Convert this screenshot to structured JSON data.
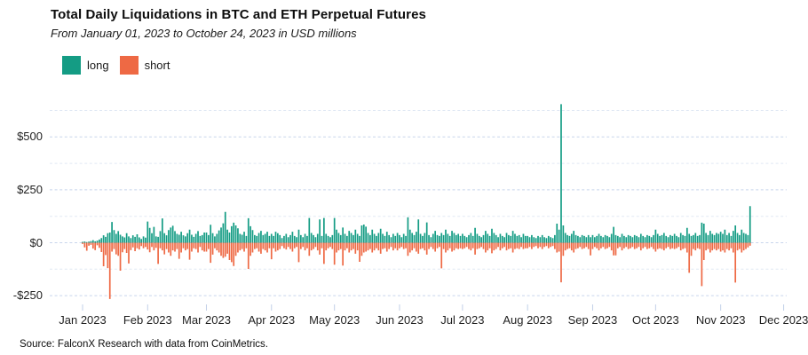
{
  "chart_data": {
    "type": "bar",
    "title": "Total Daily Liquidations in BTC and ETH Perpetual Futures",
    "subtitle": "From January 01, 2023 to October 24, 2023 in USD millions",
    "unit": "USD millions",
    "frequency": "daily",
    "start_date": "2023-01-01",
    "grid": "horizontal-dashed",
    "legend_position": "top-left",
    "y_ticks": [
      500,
      250,
      0,
      -250
    ],
    "y_tick_labels": [
      "$500",
      "$250",
      "$0",
      "-$250"
    ],
    "y_minor_ticks": [
      625,
      375,
      125,
      -125
    ],
    "ylim": [
      -290,
      680
    ],
    "x_tick_labels": [
      "Jan 2023",
      "Feb 2023",
      "Mar 2023",
      "Apr 2023",
      "May 2023",
      "Jun 2023",
      "Jul 2023",
      "Aug 2023",
      "Sep 2023",
      "Oct 2023",
      "Nov 2023",
      "Dec 2023"
    ],
    "series": [
      {
        "name": "long",
        "color": "#149C84",
        "values": [
          4,
          6,
          3,
          5,
          8,
          12,
          7,
          10,
          15,
          22,
          35,
          28,
          45,
          48,
          98,
          60,
          42,
          55,
          38,
          30,
          25,
          45,
          30,
          22,
          35,
          28,
          40,
          25,
          18,
          30,
          24,
          100,
          70,
          45,
          75,
          30,
          28,
          55,
          115,
          45,
          35,
          60,
          72,
          80,
          55,
          42,
          38,
          52,
          35,
          30,
          45,
          62,
          38,
          28,
          42,
          55,
          32,
          36,
          48,
          48,
          36,
          85,
          45,
          30,
          42,
          58,
          72,
          92,
          146,
          62,
          48,
          78,
          95,
          82,
          68,
          42,
          38,
          52,
          32,
          116,
          78,
          60,
          36,
          32,
          46,
          56,
          36,
          42,
          52,
          32,
          42,
          32,
          52,
          45,
          36,
          22,
          32,
          42,
          26,
          36,
          52,
          32,
          26,
          62,
          36,
          26,
          42,
          32,
          117,
          46,
          36,
          26,
          42,
          110,
          32,
          117,
          42,
          32,
          26,
          36,
          117,
          62,
          46,
          36,
          72,
          42,
          32,
          56,
          46,
          36,
          62,
          42,
          32,
          82,
          86,
          76,
          46,
          36,
          62,
          42,
          32,
          46,
          66,
          42,
          32,
          52,
          36,
          26,
          42,
          32,
          46,
          36,
          26,
          42,
          32,
          120,
          62,
          46,
          36,
          52,
          110,
          42,
          32,
          46,
          96,
          36,
          26,
          42,
          56,
          36,
          32,
          46,
          36,
          62,
          42,
          32,
          56,
          46,
          36,
          42,
          32,
          42,
          32,
          26,
          36,
          46,
          32,
          70,
          42,
          32,
          26,
          36,
          56,
          42,
          32,
          66,
          46,
          36,
          26,
          42,
          32,
          26,
          46,
          36,
          32,
          56,
          42,
          32,
          36,
          26,
          42,
          32,
          32,
          26,
          36,
          26,
          22,
          32,
          26,
          36,
          26,
          22,
          32,
          26,
          22,
          36,
          90,
          62,
          655,
          82,
          46,
          36,
          32,
          42,
          56,
          36,
          32,
          26,
          36,
          32,
          26,
          36,
          26,
          36,
          26,
          32,
          42,
          32,
          26,
          36,
          32,
          26,
          42,
          75,
          36,
          32,
          26,
          42,
          32,
          26,
          36,
          32,
          26,
          36,
          32,
          26,
          42,
          32,
          26,
          36,
          32,
          26,
          36,
          62,
          42,
          32,
          36,
          46,
          32,
          26,
          36,
          32,
          42,
          32,
          26,
          46,
          36,
          32,
          70,
          42,
          32,
          36,
          46,
          32,
          36,
          95,
          90,
          46,
          36,
          56,
          42,
          36,
          46,
          42,
          52,
          42,
          62,
          36,
          46,
          32,
          56,
          82,
          46,
          36,
          62,
          46,
          42,
          36,
          173
        ]
      },
      {
        "name": "short",
        "color": "#EE6944",
        "values": [
          -6,
          -22,
          -38,
          -14,
          -10,
          -28,
          -35,
          -12,
          -24,
          -44,
          -111,
          -58,
          -120,
          -266,
          -42,
          -30,
          -55,
          -62,
          -132,
          -45,
          -30,
          -48,
          -98,
          -35,
          -22,
          -40,
          -26,
          -32,
          -16,
          -26,
          -20,
          -32,
          -45,
          -20,
          -36,
          -24,
          -100,
          -26,
          -36,
          -55,
          -30,
          -46,
          -62,
          -36,
          -42,
          -30,
          -76,
          -46,
          -26,
          -36,
          -30,
          -80,
          -42,
          -26,
          -30,
          -46,
          -20,
          -36,
          -42,
          -42,
          -30,
          -95,
          -56,
          -26,
          -36,
          -46,
          -62,
          -72,
          -66,
          -52,
          -82,
          -92,
          -110,
          -62,
          -46,
          -36,
          -30,
          -42,
          -26,
          -124,
          -62,
          -46,
          -30,
          -26,
          -42,
          -52,
          -30,
          -36,
          -46,
          -26,
          -78,
          -26,
          -42,
          -36,
          -30,
          -16,
          -26,
          -32,
          -20,
          -30,
          -42,
          -26,
          -20,
          -92,
          -30,
          -20,
          -36,
          -26,
          -62,
          -36,
          -30,
          -20,
          -36,
          -56,
          -26,
          -100,
          -36,
          -26,
          -20,
          -30,
          -104,
          -46,
          -36,
          -30,
          -108,
          -36,
          -26,
          -46,
          -36,
          -30,
          -52,
          -36,
          -90,
          -62,
          -46,
          -42,
          -36,
          -30,
          -46,
          -36,
          -26,
          -36,
          -52,
          -30,
          -26,
          -42,
          -30,
          -20,
          -36,
          -26,
          -36,
          -26,
          -20,
          -30,
          -26,
          -62,
          -46,
          -36,
          -26,
          -42,
          -52,
          -30,
          -26,
          -36,
          -56,
          -30,
          -20,
          -30,
          -42,
          -26,
          -20,
          -121,
          -30,
          -46,
          -36,
          -26,
          -42,
          -36,
          -26,
          -30,
          -26,
          -30,
          -26,
          -20,
          -30,
          -36,
          -26,
          -56,
          -30,
          -26,
          -20,
          -30,
          -46,
          -36,
          -26,
          -50,
          -36,
          -30,
          -20,
          -36,
          -26,
          -20,
          -36,
          -30,
          -26,
          -46,
          -30,
          -26,
          -30,
          -20,
          -30,
          -26,
          -26,
          -20,
          -30,
          -20,
          -16,
          -26,
          -20,
          -30,
          -20,
          -16,
          -26,
          -20,
          -16,
          -30,
          -46,
          -42,
          -187,
          -62,
          -36,
          -30,
          -26,
          -36,
          -46,
          -30,
          -26,
          -20,
          -30,
          -26,
          -20,
          -30,
          -60,
          -30,
          -20,
          -26,
          -36,
          -26,
          -20,
          -30,
          -26,
          -20,
          -36,
          -60,
          -60,
          -26,
          -20,
          -36,
          -26,
          -20,
          -30,
          -26,
          -20,
          -30,
          -26,
          -20,
          -36,
          -26,
          -20,
          -30,
          -26,
          -20,
          -30,
          -42,
          -30,
          -26,
          -30,
          -36,
          -26,
          -20,
          -30,
          -26,
          -30,
          -26,
          -20,
          -36,
          -30,
          -26,
          -46,
          -142,
          -62,
          -30,
          -36,
          -26,
          -30,
          -205,
          -82,
          -36,
          -30,
          -46,
          -36,
          -30,
          -36,
          -30,
          -42,
          -36,
          -46,
          -30,
          -36,
          -26,
          -46,
          -188,
          -36,
          -30,
          -46,
          -36,
          -30,
          -22,
          -14
        ]
      }
    ]
  },
  "legend": {
    "items": [
      {
        "label": "long",
        "color": "#149C84"
      },
      {
        "label": "short",
        "color": "#EE6944"
      }
    ]
  },
  "footer": {
    "source": "Source: FalconX Research with data from CoinMetrics."
  },
  "style_colors": {
    "grid_major": "#c7d5ec",
    "grid_minor": "#e0e8f4",
    "axis_tick": "#c2d0e8"
  }
}
